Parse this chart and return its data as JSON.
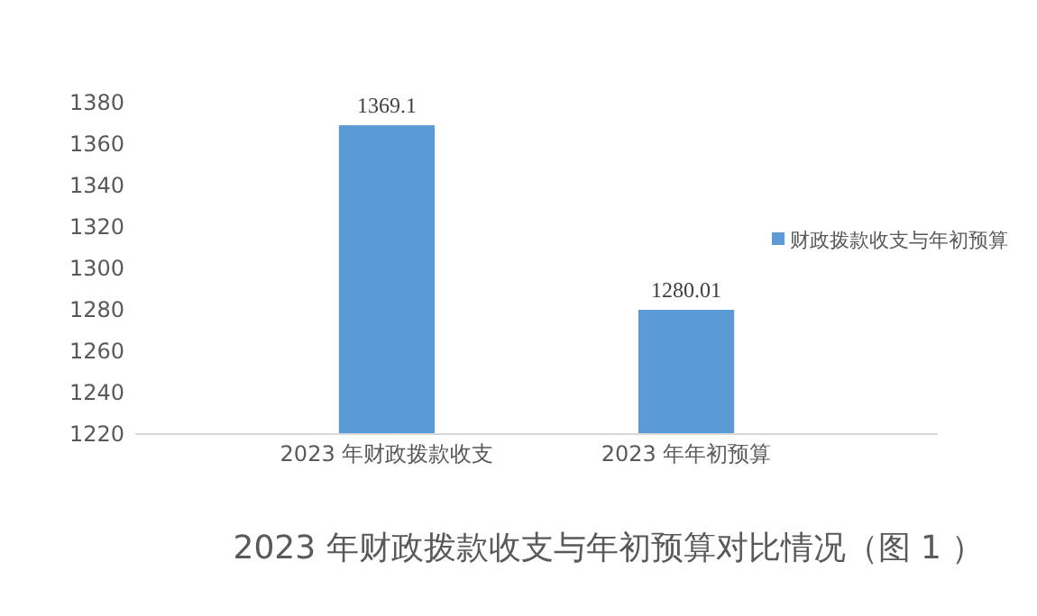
{
  "chart_data": {
    "type": "bar",
    "title": "2023 年财政拨款收支与年初预算对比情况（图 1 ）",
    "categories": [
      "2023 年财政拨款收支",
      "2023 年年初预算"
    ],
    "series": [
      {
        "name": "财政拨款收支与年初预算",
        "color": "#5b9bd5",
        "values": [
          1369.1,
          1280.01
        ]
      }
    ],
    "ylim": [
      1220,
      1380
    ],
    "yticks": [
      1220,
      1240,
      1260,
      1280,
      1300,
      1320,
      1340,
      1360,
      1380
    ],
    "data_labels": true,
    "grid": false,
    "legend": "right"
  }
}
